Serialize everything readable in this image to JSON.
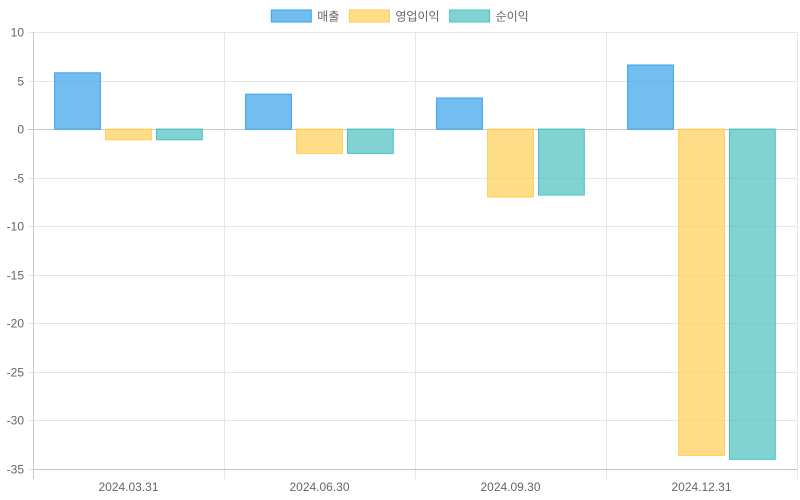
{
  "chart_data": {
    "type": "bar",
    "title": "",
    "xlabel": "",
    "ylabel": "",
    "ylim": [
      -35,
      10
    ],
    "y_ticks": [
      10,
      5,
      0,
      -5,
      -10,
      -15,
      -20,
      -25,
      -30,
      -35
    ],
    "grid": true,
    "legend_position": "top-center",
    "categories": [
      "2024.03.31",
      "2024.06.30",
      "2024.09.30",
      "2024.12.31"
    ],
    "series": [
      {
        "name": "매출",
        "values": [
          5.8,
          3.6,
          3.2,
          6.6
        ],
        "color": "#36a2eb",
        "fill": "rgba(54,162,235,0.7)"
      },
      {
        "name": "영업이익",
        "values": [
          -1.1,
          -2.5,
          -7.0,
          -33.6
        ],
        "color": "#ffce56",
        "fill": "rgba(255,206,86,0.7)"
      },
      {
        "name": "순이익",
        "values": [
          -1.1,
          -2.5,
          -6.8,
          -34.0
        ],
        "color": "#4bc0c0",
        "fill": "rgba(75,192,192,0.7)"
      }
    ]
  }
}
